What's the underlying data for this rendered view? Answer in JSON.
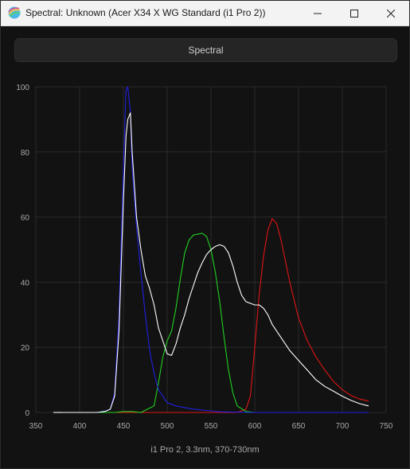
{
  "window": {
    "title": "Spectral: Unknown (Acer X34 X WG Standard (i1 Pro 2))",
    "controls": [
      "minimize-icon",
      "maximize-icon",
      "close-icon"
    ]
  },
  "toolbar": {
    "mode_label": "Spectral"
  },
  "caption": "i1 Pro 2, 3.3nm, 370-730nm",
  "colors": {
    "background": "#121212",
    "grid": "#2b2b2b",
    "red": "#e01515",
    "green": "#22d122",
    "blue": "#2020e0",
    "white": "#ffffff"
  },
  "chart_data": {
    "type": "line",
    "xlim": [
      350,
      750
    ],
    "ylim": [
      0,
      100
    ],
    "x_ticks": [
      350,
      400,
      450,
      500,
      550,
      600,
      650,
      700,
      750
    ],
    "y_ticks": [
      0,
      20,
      40,
      60,
      80,
      100
    ],
    "series": [
      {
        "color": "red",
        "points": [
          [
            370,
            0
          ],
          [
            580,
            0
          ],
          [
            590,
            1
          ],
          [
            595,
            5
          ],
          [
            600,
            20
          ],
          [
            605,
            36
          ],
          [
            610,
            48
          ],
          [
            615,
            56
          ],
          [
            620,
            59.5
          ],
          [
            625,
            58
          ],
          [
            630,
            53
          ],
          [
            640,
            40
          ],
          [
            650,
            29
          ],
          [
            660,
            22
          ],
          [
            670,
            17
          ],
          [
            680,
            13
          ],
          [
            690,
            9.5
          ],
          [
            700,
            7
          ],
          [
            710,
            5.2
          ],
          [
            720,
            4.1
          ],
          [
            730,
            3.5
          ]
        ]
      },
      {
        "color": "green",
        "points": [
          [
            370,
            0
          ],
          [
            440,
            0
          ],
          [
            450,
            0.3
          ],
          [
            460,
            0.3
          ],
          [
            470,
            0
          ],
          [
            485,
            2
          ],
          [
            490,
            9
          ],
          [
            495,
            17
          ],
          [
            500,
            22
          ],
          [
            505,
            25
          ],
          [
            510,
            32
          ],
          [
            515,
            41
          ],
          [
            520,
            49
          ],
          [
            525,
            53
          ],
          [
            530,
            54.5
          ],
          [
            540,
            55
          ],
          [
            545,
            54
          ],
          [
            550,
            50
          ],
          [
            555,
            43
          ],
          [
            560,
            34
          ],
          [
            565,
            23
          ],
          [
            570,
            13
          ],
          [
            575,
            6
          ],
          [
            580,
            2
          ],
          [
            590,
            0.3
          ],
          [
            600,
            0
          ],
          [
            730,
            0
          ]
        ]
      },
      {
        "color": "blue",
        "points": [
          [
            370,
            0
          ],
          [
            420,
            0
          ],
          [
            430,
            0.5
          ],
          [
            435,
            1
          ],
          [
            440,
            6
          ],
          [
            445,
            30
          ],
          [
            450,
            75
          ],
          [
            453,
            99
          ],
          [
            455,
            100
          ],
          [
            458,
            92
          ],
          [
            460,
            75
          ],
          [
            465,
            57
          ],
          [
            470,
            43
          ],
          [
            475,
            30
          ],
          [
            480,
            19
          ],
          [
            485,
            12
          ],
          [
            490,
            7
          ],
          [
            495,
            5
          ],
          [
            500,
            3
          ],
          [
            510,
            2
          ],
          [
            520,
            1.5
          ],
          [
            530,
            1
          ],
          [
            550,
            0.5
          ],
          [
            560,
            0.2
          ],
          [
            600,
            0
          ],
          [
            730,
            0
          ]
        ]
      },
      {
        "color": "white",
        "points": [
          [
            370,
            0
          ],
          [
            420,
            0
          ],
          [
            430,
            0.4
          ],
          [
            435,
            1
          ],
          [
            440,
            5
          ],
          [
            445,
            25
          ],
          [
            450,
            65
          ],
          [
            453,
            85
          ],
          [
            455,
            90
          ],
          [
            458,
            92
          ],
          [
            460,
            80
          ],
          [
            465,
            60
          ],
          [
            470,
            50
          ],
          [
            475,
            42
          ],
          [
            480,
            38
          ],
          [
            485,
            33
          ],
          [
            490,
            26
          ],
          [
            495,
            22
          ],
          [
            500,
            18
          ],
          [
            505,
            17.5
          ],
          [
            510,
            21
          ],
          [
            515,
            26
          ],
          [
            520,
            30
          ],
          [
            525,
            35
          ],
          [
            530,
            39
          ],
          [
            535,
            43
          ],
          [
            540,
            46
          ],
          [
            545,
            48.5
          ],
          [
            550,
            50
          ],
          [
            555,
            51
          ],
          [
            560,
            51.5
          ],
          [
            565,
            51
          ],
          [
            570,
            49
          ],
          [
            575,
            45
          ],
          [
            580,
            40
          ],
          [
            585,
            36
          ],
          [
            590,
            34
          ],
          [
            600,
            33
          ],
          [
            605,
            33
          ],
          [
            610,
            32
          ],
          [
            615,
            30
          ],
          [
            620,
            27
          ],
          [
            630,
            23
          ],
          [
            640,
            19
          ],
          [
            650,
            16
          ],
          [
            660,
            13
          ],
          [
            670,
            10
          ],
          [
            680,
            8
          ],
          [
            690,
            6.5
          ],
          [
            700,
            5
          ],
          [
            710,
            3.7
          ],
          [
            720,
            2.7
          ],
          [
            730,
            2
          ]
        ]
      }
    ]
  }
}
